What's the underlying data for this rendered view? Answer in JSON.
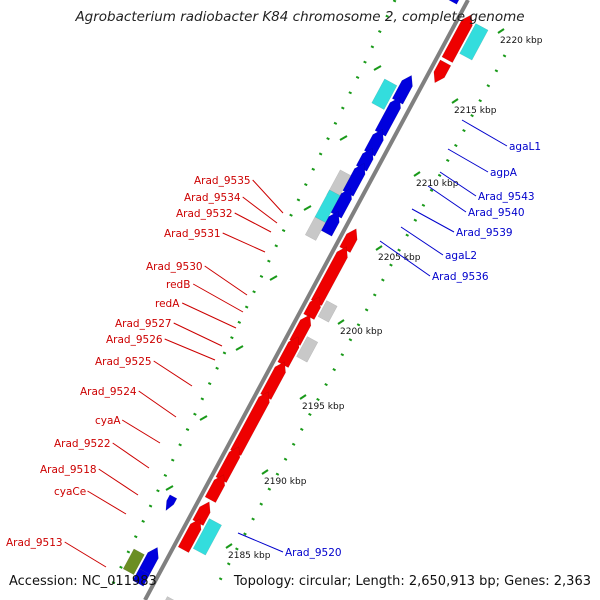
{
  "title": "Agrobacterium radiobacter K84 chromosome 2, complete genome",
  "footer": {
    "accession": "Accession: NC_011983",
    "topology": "Topology: circular; Length: 2,650,913 bp; Genes: 2,363"
  },
  "colors": {
    "forward_gene": "#ee0000",
    "reverse_gene": "#0000dd",
    "rna_gene": "#33dddd",
    "other_gene": "#c8c8c8",
    "pseudogene": "#6b8e23",
    "backbone": "#808080",
    "ruler": "#1a9a1a",
    "label_forward": "#cc0000",
    "label_reverse": "#0000cc"
  },
  "ticks": [
    {
      "label": "2185 kbp"
    },
    {
      "label": "2190 kbp"
    },
    {
      "label": "2195 kbp"
    },
    {
      "label": "2200 kbp"
    },
    {
      "label": "2205 kbp"
    },
    {
      "label": "2210 kbp"
    },
    {
      "label": "2215 kbp"
    },
    {
      "label": "2220 kbp"
    }
  ],
  "left_labels": [
    "Arad_9535",
    "Arad_9534",
    "Arad_9532",
    "Arad_9531",
    "Arad_9530",
    "redB",
    "redA",
    "Arad_9527",
    "Arad_9526",
    "Arad_9525",
    "Arad_9524",
    "cyaA",
    "Arad_9522",
    "Arad_9518",
    "cyaCe",
    "Arad_9513"
  ],
  "right_labels": [
    "agaL1",
    "agpA",
    "Arad_9543",
    "Arad_9540",
    "Arad_9539",
    "agaL2",
    "Arad_9536",
    "Arad_9520"
  ]
}
